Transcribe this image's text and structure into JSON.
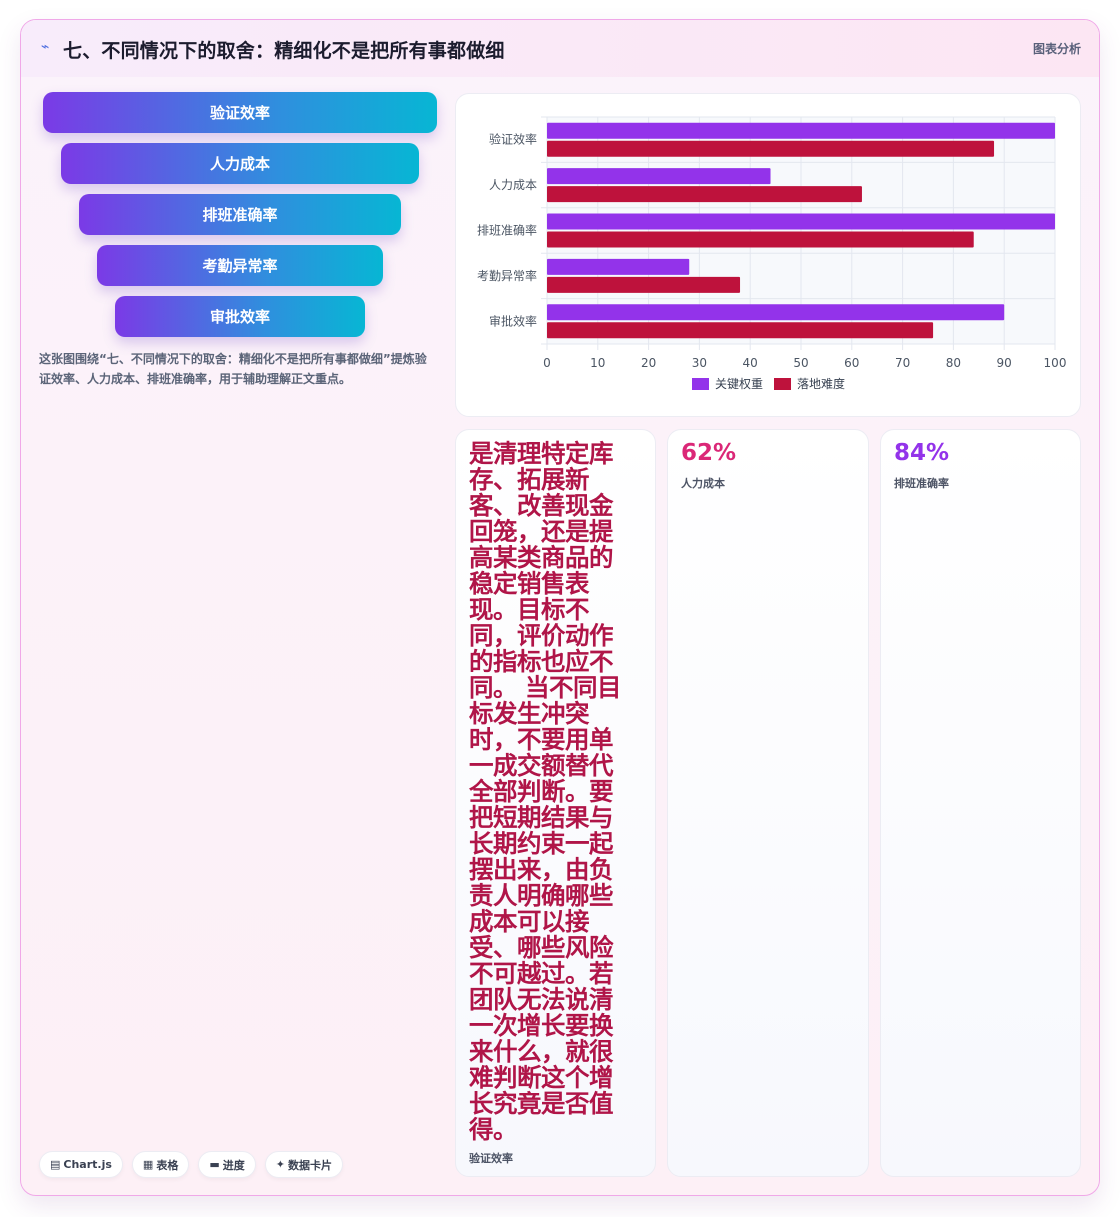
{
  "header": {
    "icon": "arrow-icon",
    "title": "七、不同情况下的取舍：精细化不是把所有事都做细",
    "tag": "图表分析"
  },
  "funnel": {
    "items": [
      "验证效率",
      "人力成本",
      "排班准确率",
      "考勤异常率",
      "审批效率"
    ],
    "caption": "这张图围绕“七、不同情况下的取舍：精细化不是把所有事都做细”提炼验证效率、人力成本、排班准确率，用于辅助理解正文重点。"
  },
  "chart_data": {
    "type": "bar",
    "orientation": "horizontal",
    "categories": [
      "验证效率",
      "人力成本",
      "排班准确率",
      "考勤异常率",
      "审批效率"
    ],
    "series": [
      {
        "name": "关键权重",
        "color": "#9333ea",
        "values": [
          100,
          44,
          100,
          28,
          90
        ]
      },
      {
        "name": "落地难度",
        "color": "#be123c",
        "values": [
          88,
          62,
          84,
          38,
          76
        ]
      }
    ],
    "xlim": [
      0,
      100
    ],
    "ticks": [
      0,
      10,
      20,
      30,
      40,
      50,
      60,
      70,
      80,
      90,
      100
    ],
    "grid": true,
    "legend": "bottom"
  },
  "stats": [
    {
      "value": "是清理特定库存、拓展新客、改善现金回笼，还是提高某类商品的稳定销售表现。目标不同，评价动作的指标也应不同。 当不同目标发生冲突时，不要用单一成交额替代全部判断。要把短期结果与长期约束一起摆出来，由负责人明确哪些成本可以接受、哪些风险不可越过。若团队无法说清一次增长要换来什么，就很难判断这个增长究竟是否值得。",
      "label": "验证效率",
      "color": "#b01548"
    },
    {
      "value": "62%",
      "label": "人力成本",
      "color": "#db2777"
    },
    {
      "value": "84%",
      "label": "排班准确率",
      "color": "#9333ea"
    }
  ],
  "chips": [
    {
      "icon": "chart-icon",
      "glyph": "▤",
      "label": "Chart.js"
    },
    {
      "icon": "table-icon",
      "glyph": "▦",
      "label": "表格"
    },
    {
      "icon": "progress-icon",
      "glyph": "▬",
      "label": "进度"
    },
    {
      "icon": "card-icon",
      "glyph": "✦",
      "label": "数据卡片"
    }
  ]
}
